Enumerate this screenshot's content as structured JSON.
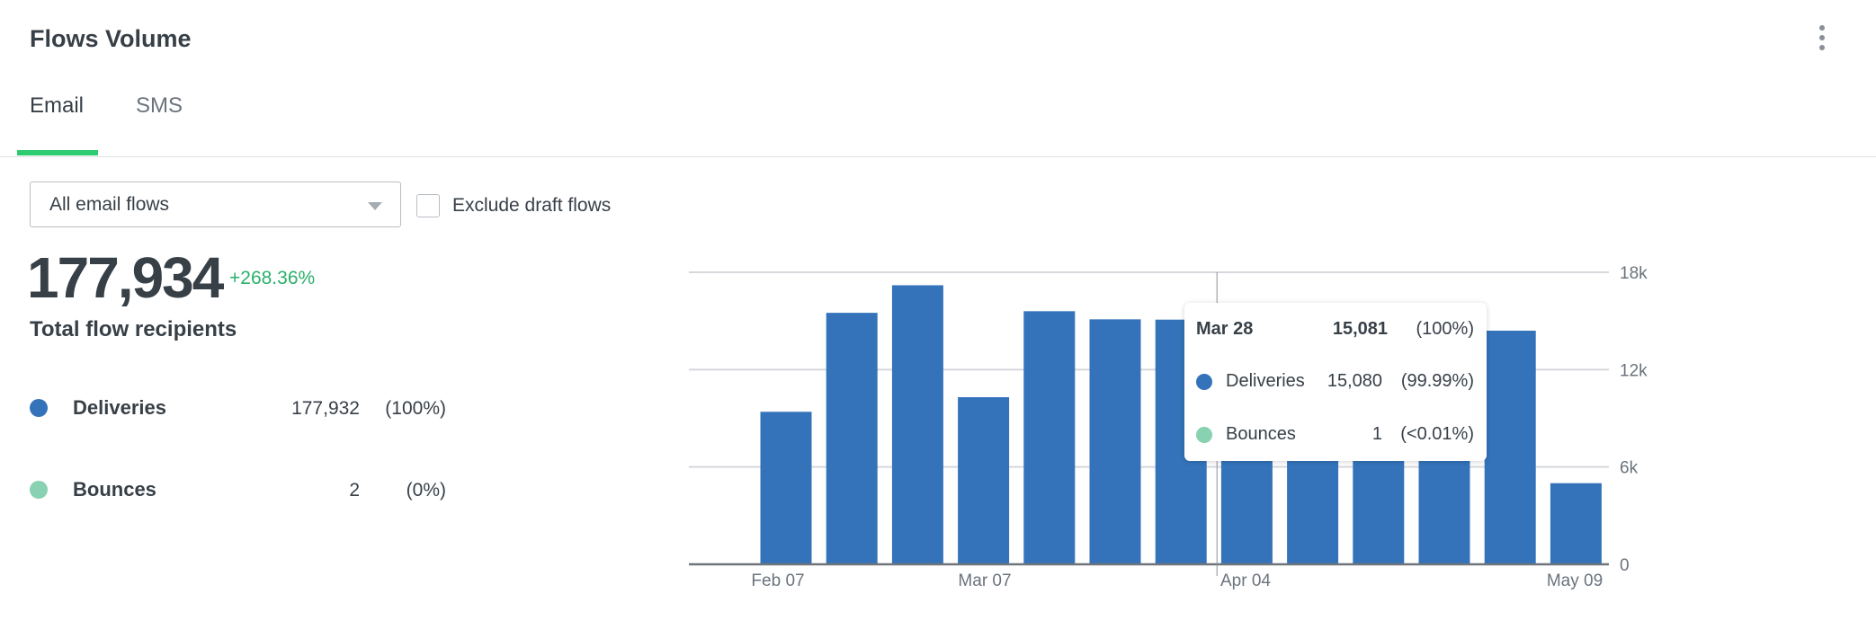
{
  "header": {
    "title": "Flows Volume",
    "menu_icon": "kebab-vertical-icon"
  },
  "tabs": [
    {
      "label": "Email",
      "active": true
    },
    {
      "label": "SMS",
      "active": false
    }
  ],
  "accent_color": "#2ecc71",
  "filters": {
    "flow_select": {
      "value": "All email flows"
    },
    "exclude_draft": {
      "label": "Exclude draft flows",
      "checked": false
    }
  },
  "summary": {
    "total": "177,934",
    "change": "+268.36%",
    "label": "Total flow recipients"
  },
  "legend": [
    {
      "label": "Deliveries",
      "value": "177,932",
      "pct": "(100%)",
      "color": "#3473ba"
    },
    {
      "label": "Bounces",
      "value": "2",
      "pct": "(0%)",
      "color": "#88d1b1"
    }
  ],
  "tooltip": {
    "date": "Mar 28",
    "total": "15,081",
    "total_pct": "(100%)",
    "rows": [
      {
        "label": "Deliveries",
        "value": "15,080",
        "pct": "(99.99%)"
      },
      {
        "label": "Bounces",
        "value": "1",
        "pct": "(<0.01%)"
      }
    ]
  },
  "chart_data": {
    "type": "bar",
    "series": [
      {
        "color": "#3473ba",
        "values": [
          9400,
          15500,
          17200,
          10300,
          15600,
          15100,
          15081,
          14800,
          15200,
          14600,
          15000,
          14400,
          5000
        ]
      }
    ],
    "x_tick_labels": [
      "Feb 07",
      "Mar 07",
      "Apr 04",
      "May 09"
    ],
    "y_tick_labels": [
      "0",
      "6k",
      "12k",
      "18k"
    ],
    "ylim": [
      0,
      18000
    ],
    "y_axis_side": "right",
    "grid": true,
    "highlighted_index": 6
  }
}
